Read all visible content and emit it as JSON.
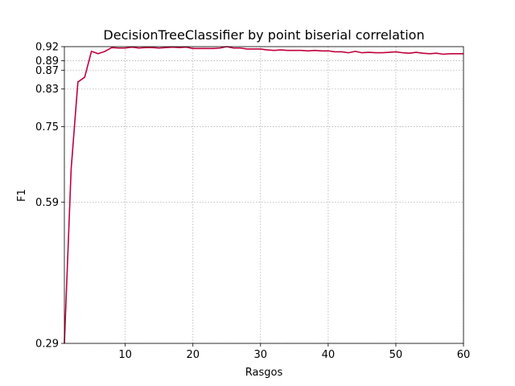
{
  "chart_data": {
    "type": "line",
    "title": "DecisionTreeClassifier by point biserial correlation",
    "xlabel": "Rasgos",
    "ylabel": "F1",
    "xlim": [
      1,
      60
    ],
    "ylim": [
      0.29,
      0.92
    ],
    "x_ticks": [
      10,
      20,
      30,
      40,
      50,
      60
    ],
    "y_ticks": [
      0.29,
      0.59,
      0.75,
      0.83,
      0.87,
      0.89,
      0.92
    ],
    "grid": true,
    "colors": {
      "line": "#c0003c",
      "grid": "#b0b0b0"
    },
    "series": [
      {
        "x": [
          1,
          2,
          3,
          4,
          5,
          6,
          7,
          8,
          9,
          10,
          11,
          12,
          13,
          14,
          15,
          16,
          17,
          18,
          19,
          20,
          21,
          22,
          23,
          24,
          25,
          26,
          27,
          28,
          29,
          30,
          31,
          32,
          33,
          34,
          35,
          36,
          37,
          38,
          39,
          40,
          41,
          42,
          43,
          44,
          45,
          46,
          47,
          48,
          49,
          50,
          51,
          52,
          53,
          54,
          55,
          56,
          57,
          58,
          59,
          60
        ],
        "y": [
          0.29,
          0.66,
          0.845,
          0.855,
          0.91,
          0.905,
          0.91,
          0.918,
          0.917,
          0.917,
          0.919,
          0.917,
          0.918,
          0.918,
          0.917,
          0.918,
          0.919,
          0.918,
          0.919,
          0.916,
          0.916,
          0.916,
          0.916,
          0.917,
          0.92,
          0.917,
          0.917,
          0.915,
          0.915,
          0.915,
          0.913,
          0.912,
          0.913,
          0.912,
          0.912,
          0.912,
          0.911,
          0.912,
          0.911,
          0.911,
          0.909,
          0.909,
          0.907,
          0.91,
          0.907,
          0.908,
          0.907,
          0.907,
          0.908,
          0.909,
          0.907,
          0.906,
          0.908,
          0.906,
          0.905,
          0.906,
          0.904,
          0.905,
          0.905,
          0.905
        ]
      }
    ]
  }
}
